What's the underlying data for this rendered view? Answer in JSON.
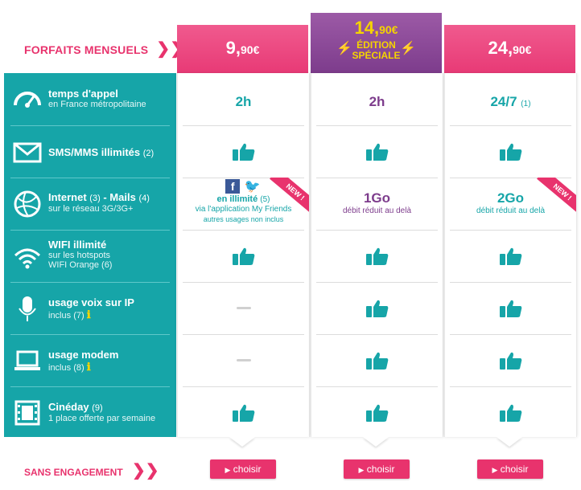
{
  "header": {
    "forfaits_label": "FORFAITS MENSUELS",
    "chevrons": "❯❯",
    "plans": [
      {
        "price_main": "9,",
        "price_cents": "90€"
      },
      {
        "price_main": "14,",
        "price_cents": "90€",
        "badge_line1": "ÉDITION",
        "badge_line2": "SPÉCIALE"
      },
      {
        "price_main": "24,",
        "price_cents": "90€"
      }
    ]
  },
  "features": [
    {
      "title": "temps d'appel",
      "sub": "en France métropolitaine",
      "icon": "speedometer-icon"
    },
    {
      "title": "SMS/MMS illimités",
      "note": "(2)",
      "icon": "envelope-icon"
    },
    {
      "title": "Internet",
      "note1": "(3)",
      "title2": " - Mails",
      "note2": "(4)",
      "sub": "sur le réseau 3G/3G+",
      "icon": "globe-icon"
    },
    {
      "title": "WIFI illimité",
      "sub1": "sur les hotspots",
      "sub2": "WIFI Orange",
      "note": "(6)",
      "icon": "wifi-icon"
    },
    {
      "title": "usage voix sur IP",
      "sub": "inclus",
      "note": "(7)",
      "icon": "microphone-icon"
    },
    {
      "title": "usage modem",
      "sub": "inclus",
      "note": "(8)",
      "icon": "laptop-icon"
    },
    {
      "title": "Cinéday",
      "note": "(9)",
      "sub": "1 place offerte par semaine",
      "icon": "film-icon"
    }
  ],
  "plan_values": {
    "plan1": {
      "calls": "2h",
      "internet_main": "en illimité",
      "internet_note": "(5)",
      "internet_sub": "via l'application My Friends",
      "internet_sub2": "autres usages non inclus",
      "new_badge": "NEW !"
    },
    "plan2": {
      "calls": "2h",
      "internet_main": "1Go",
      "internet_sub": "débit réduit au delà"
    },
    "plan3": {
      "calls": "24/7",
      "calls_note": "(1)",
      "internet_main": "2Go",
      "internet_sub": "débit réduit au delà",
      "new_badge": "NEW !"
    }
  },
  "footer": {
    "sans_engagement": "SANS ENGAGEMENT",
    "chevrons": "❯❯",
    "choisir_label": "choisir",
    "choisir_arrow": "▶"
  },
  "colors": {
    "teal": "#16a5a8",
    "pink": "#e8336d",
    "purple": "#7d3c8c",
    "yellow": "#f5d400"
  }
}
